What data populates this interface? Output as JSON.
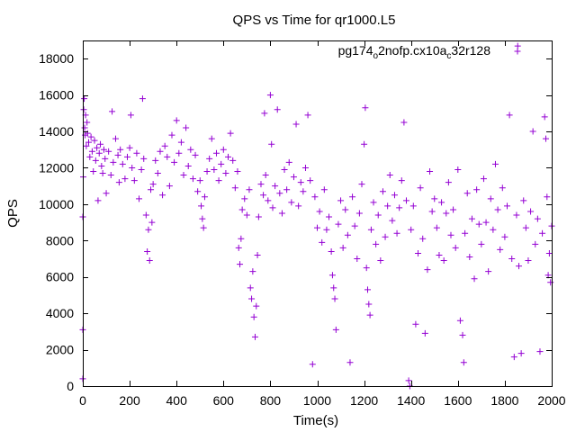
{
  "chart_data": {
    "type": "scatter",
    "title": "QPS vs Time for qr1000.L5",
    "xlabel": "Time(s)",
    "ylabel": "QPS",
    "xlim": [
      0,
      2000
    ],
    "ylim": [
      0,
      19000
    ],
    "x_ticks": [
      "0",
      "200",
      "400",
      "600",
      "800",
      "1000",
      "1200",
      "1400",
      "1600",
      "1800",
      "2000"
    ],
    "y_ticks": [
      "0",
      "2000",
      "4000",
      "6000",
      "8000",
      "10000",
      "12000",
      "14000",
      "16000",
      "18000"
    ],
    "x_tick_values": [
      0,
      200,
      400,
      600,
      800,
      1000,
      1200,
      1400,
      1600,
      1800,
      2000
    ],
    "y_tick_values": [
      0,
      2000,
      4000,
      6000,
      8000,
      10000,
      12000,
      14000,
      16000,
      18000
    ],
    "grid": false,
    "legend_position": "top-right",
    "marker": "plus",
    "series": [
      {
        "legend_parts": [
          {
            "text": "pg174",
            "sub": false
          },
          {
            "text": "o",
            "sub": true
          },
          {
            "text": "2nofp.cx10a",
            "sub": false
          },
          {
            "text": "c",
            "sub": true
          },
          {
            "text": "32r128",
            "sub": false
          }
        ],
        "color": "#9400d3",
        "points": [
          [
            0,
            3100
          ],
          [
            0,
            400
          ],
          [
            0,
            9300
          ],
          [
            2,
            11500
          ],
          [
            4,
            15200
          ],
          [
            6,
            15800
          ],
          [
            8,
            14200
          ],
          [
            10,
            13800
          ],
          [
            12,
            14900
          ],
          [
            15,
            13200
          ],
          [
            18,
            14500
          ],
          [
            20,
            13900
          ],
          [
            25,
            13400
          ],
          [
            30,
            12600
          ],
          [
            35,
            13700
          ],
          [
            40,
            12900
          ],
          [
            45,
            11800
          ],
          [
            50,
            13500
          ],
          [
            55,
            12400
          ],
          [
            60,
            13100
          ],
          [
            65,
            10200
          ],
          [
            70,
            12800
          ],
          [
            75,
            13300
          ],
          [
            80,
            12100
          ],
          [
            85,
            11700
          ],
          [
            90,
            13000
          ],
          [
            95,
            12500
          ],
          [
            100,
            10600
          ],
          [
            110,
            12900
          ],
          [
            120,
            11600
          ],
          [
            125,
            15100
          ],
          [
            130,
            12300
          ],
          [
            140,
            13600
          ],
          [
            150,
            12700
          ],
          [
            155,
            11200
          ],
          [
            160,
            13000
          ],
          [
            170,
            12200
          ],
          [
            180,
            11400
          ],
          [
            190,
            12600
          ],
          [
            200,
            13100
          ],
          [
            205,
            14900
          ],
          [
            210,
            12000
          ],
          [
            220,
            11300
          ],
          [
            230,
            12800
          ],
          [
            240,
            10300
          ],
          [
            250,
            11900
          ],
          [
            255,
            15800
          ],
          [
            260,
            12500
          ],
          [
            270,
            9400
          ],
          [
            275,
            7400
          ],
          [
            280,
            8600
          ],
          [
            285,
            6900
          ],
          [
            290,
            10800
          ],
          [
            295,
            9000
          ],
          [
            300,
            11100
          ],
          [
            310,
            12400
          ],
          [
            320,
            11700
          ],
          [
            330,
            12900
          ],
          [
            340,
            10500
          ],
          [
            350,
            13200
          ],
          [
            360,
            12600
          ],
          [
            370,
            11000
          ],
          [
            380,
            13800
          ],
          [
            390,
            12300
          ],
          [
            400,
            14600
          ],
          [
            410,
            12800
          ],
          [
            420,
            13400
          ],
          [
            430,
            11600
          ],
          [
            440,
            14200
          ],
          [
            450,
            12100
          ],
          [
            460,
            13000
          ],
          [
            470,
            11400
          ],
          [
            480,
            12700
          ],
          [
            490,
            10700
          ],
          [
            500,
            11300
          ],
          [
            505,
            9900
          ],
          [
            510,
            9200
          ],
          [
            515,
            8700
          ],
          [
            520,
            10400
          ],
          [
            530,
            11800
          ],
          [
            540,
            12500
          ],
          [
            550,
            13600
          ],
          [
            560,
            11900
          ],
          [
            570,
            12800
          ],
          [
            580,
            11300
          ],
          [
            590,
            12200
          ],
          [
            600,
            13000
          ],
          [
            610,
            11700
          ],
          [
            620,
            12600
          ],
          [
            630,
            13900
          ],
          [
            640,
            12400
          ],
          [
            650,
            10900
          ],
          [
            660,
            11800
          ],
          [
            665,
            7600
          ],
          [
            670,
            6700
          ],
          [
            675,
            8100
          ],
          [
            680,
            9700
          ],
          [
            690,
            10300
          ],
          [
            700,
            9400
          ],
          [
            710,
            10800
          ],
          [
            715,
            5400
          ],
          [
            720,
            4800
          ],
          [
            725,
            6300
          ],
          [
            730,
            3800
          ],
          [
            735,
            2700
          ],
          [
            740,
            4400
          ],
          [
            745,
            7200
          ],
          [
            750,
            9300
          ],
          [
            760,
            11100
          ],
          [
            770,
            10500
          ],
          [
            775,
            15000
          ],
          [
            780,
            11600
          ],
          [
            790,
            10200
          ],
          [
            800,
            16000
          ],
          [
            805,
            13300
          ],
          [
            810,
            9800
          ],
          [
            820,
            11000
          ],
          [
            830,
            15200
          ],
          [
            840,
            10600
          ],
          [
            850,
            9500
          ],
          [
            860,
            11900
          ],
          [
            870,
            10800
          ],
          [
            880,
            12300
          ],
          [
            890,
            10100
          ],
          [
            900,
            11500
          ],
          [
            910,
            14400
          ],
          [
            920,
            9900
          ],
          [
            930,
            11200
          ],
          [
            940,
            10700
          ],
          [
            950,
            12000
          ],
          [
            960,
            14900
          ],
          [
            970,
            11300
          ],
          [
            980,
            1200
          ],
          [
            990,
            10400
          ],
          [
            1000,
            8700
          ],
          [
            1010,
            9600
          ],
          [
            1020,
            7900
          ],
          [
            1030,
            10800
          ],
          [
            1040,
            8600
          ],
          [
            1050,
            9300
          ],
          [
            1060,
            7400
          ],
          [
            1065,
            6100
          ],
          [
            1070,
            5400
          ],
          [
            1075,
            4800
          ],
          [
            1080,
            3100
          ],
          [
            1090,
            8900
          ],
          [
            1100,
            10200
          ],
          [
            1110,
            7600
          ],
          [
            1120,
            9700
          ],
          [
            1130,
            8300
          ],
          [
            1140,
            1300
          ],
          [
            1150,
            10400
          ],
          [
            1160,
            8800
          ],
          [
            1170,
            7000
          ],
          [
            1180,
            9500
          ],
          [
            1190,
            11100
          ],
          [
            1200,
            13300
          ],
          [
            1205,
            15300
          ],
          [
            1210,
            6500
          ],
          [
            1215,
            5300
          ],
          [
            1220,
            4500
          ],
          [
            1225,
            3900
          ],
          [
            1230,
            8600
          ],
          [
            1240,
            10100
          ],
          [
            1250,
            7800
          ],
          [
            1260,
            9400
          ],
          [
            1270,
            6900
          ],
          [
            1280,
            10700
          ],
          [
            1290,
            8200
          ],
          [
            1300,
            9900
          ],
          [
            1310,
            11600
          ],
          [
            1320,
            9100
          ],
          [
            1330,
            10500
          ],
          [
            1340,
            8400
          ],
          [
            1350,
            9800
          ],
          [
            1360,
            11300
          ],
          [
            1370,
            14500
          ],
          [
            1380,
            10200
          ],
          [
            1390,
            300
          ],
          [
            1395,
            0
          ],
          [
            1400,
            8600
          ],
          [
            1410,
            9900
          ],
          [
            1420,
            3400
          ],
          [
            1430,
            7300
          ],
          [
            1440,
            10900
          ],
          [
            1450,
            8100
          ],
          [
            1460,
            2900
          ],
          [
            1470,
            6400
          ],
          [
            1480,
            11800
          ],
          [
            1490,
            9600
          ],
          [
            1500,
            10300
          ],
          [
            1510,
            8700
          ],
          [
            1520,
            7200
          ],
          [
            1530,
            10100
          ],
          [
            1540,
            6900
          ],
          [
            1550,
            9500
          ],
          [
            1560,
            11200
          ],
          [
            1570,
            8300
          ],
          [
            1580,
            9700
          ],
          [
            1590,
            7600
          ],
          [
            1600,
            11900
          ],
          [
            1610,
            3600
          ],
          [
            1620,
            2800
          ],
          [
            1625,
            1300
          ],
          [
            1630,
            8400
          ],
          [
            1640,
            10600
          ],
          [
            1650,
            7100
          ],
          [
            1660,
            9200
          ],
          [
            1670,
            5900
          ],
          [
            1680,
            10800
          ],
          [
            1690,
            8900
          ],
          [
            1700,
            7800
          ],
          [
            1710,
            11400
          ],
          [
            1720,
            9000
          ],
          [
            1730,
            6300
          ],
          [
            1740,
            10300
          ],
          [
            1750,
            8600
          ],
          [
            1760,
            12200
          ],
          [
            1770,
            9700
          ],
          [
            1780,
            7500
          ],
          [
            1790,
            10900
          ],
          [
            1800,
            8200
          ],
          [
            1810,
            9900
          ],
          [
            1820,
            14900
          ],
          [
            1830,
            7000
          ],
          [
            1840,
            1600
          ],
          [
            1850,
            9400
          ],
          [
            1855,
            18700
          ],
          [
            1860,
            6600
          ],
          [
            1870,
            1800
          ],
          [
            1880,
            10200
          ],
          [
            1890,
            8700
          ],
          [
            1900,
            6900
          ],
          [
            1910,
            9600
          ],
          [
            1920,
            14000
          ],
          [
            1930,
            7800
          ],
          [
            1940,
            9200
          ],
          [
            1950,
            1900
          ],
          [
            1960,
            8400
          ],
          [
            1970,
            14800
          ],
          [
            1975,
            13600
          ],
          [
            1980,
            10400
          ],
          [
            1985,
            6100
          ],
          [
            1990,
            7300
          ],
          [
            1995,
            5700
          ],
          [
            2000,
            8800
          ]
        ]
      }
    ]
  }
}
